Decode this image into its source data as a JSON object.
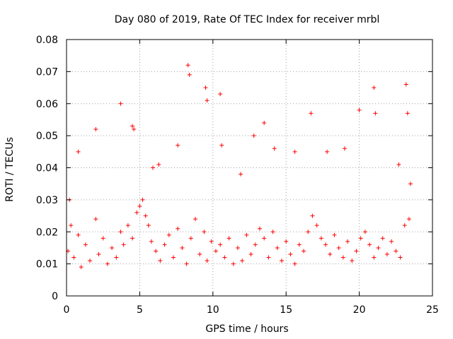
{
  "chart_data": {
    "type": "scatter",
    "title": "Day 080 of 2019, Rate Of TEC Index for receiver mrbl",
    "xlabel": "GPS time / hours",
    "ylabel": "ROTI / TECUs",
    "xlim": [
      0,
      25
    ],
    "ylim": [
      0,
      0.08
    ],
    "x_ticks": [
      "0",
      "5",
      "10",
      "15",
      "20",
      "25"
    ],
    "y_ticks": [
      "0",
      "0.01",
      "0.02",
      "0.03",
      "0.04",
      "0.05",
      "0.06",
      "0.07",
      "0.08"
    ],
    "grid": true,
    "marker": "plus",
    "color": "#ff0000",
    "series": [
      {
        "name": "ROTI",
        "x": [
          0.1,
          0.3,
          0.5,
          0.8,
          1.0,
          1.3,
          1.6,
          2.0,
          2.2,
          2.5,
          2.8,
          3.1,
          3.4,
          3.7,
          3.9,
          4.2,
          4.5,
          4.8,
          5.0,
          5.2,
          5.4,
          5.6,
          5.8,
          6.1,
          6.4,
          6.7,
          7.0,
          7.3,
          7.6,
          7.9,
          8.2,
          8.5,
          8.8,
          9.1,
          9.4,
          9.6,
          9.9,
          10.2,
          10.5,
          10.8,
          11.1,
          11.4,
          11.7,
          12.0,
          12.3,
          12.6,
          12.9,
          13.2,
          13.5,
          13.8,
          14.1,
          14.4,
          14.7,
          15.0,
          15.3,
          15.6,
          15.9,
          16.2,
          16.5,
          16.8,
          17.1,
          17.4,
          17.7,
          18.0,
          18.3,
          18.6,
          18.9,
          19.2,
          19.5,
          19.8,
          20.1,
          20.4,
          20.7,
          21.0,
          21.3,
          21.6,
          21.9,
          22.2,
          22.5,
          22.8,
          23.1,
          23.4,
          3.7,
          8.3,
          8.4,
          9.5,
          9.6,
          10.5,
          20.0,
          21.0,
          21.1,
          23.2,
          23.3,
          16.7,
          13.5,
          4.5,
          4.6,
          7.6,
          10.6,
          0.8,
          2.0,
          0.2,
          23.5,
          19.0,
          14.2,
          12.8,
          17.8,
          6.3,
          5.9,
          22.7,
          11.9,
          15.6
        ],
        "y": [
          0.014,
          0.022,
          0.012,
          0.019,
          0.009,
          0.016,
          0.011,
          0.024,
          0.013,
          0.018,
          0.01,
          0.015,
          0.012,
          0.02,
          0.016,
          0.022,
          0.018,
          0.026,
          0.028,
          0.03,
          0.025,
          0.022,
          0.017,
          0.014,
          0.011,
          0.016,
          0.019,
          0.012,
          0.021,
          0.015,
          0.01,
          0.018,
          0.024,
          0.013,
          0.02,
          0.011,
          0.017,
          0.014,
          0.016,
          0.012,
          0.018,
          0.01,
          0.015,
          0.011,
          0.019,
          0.013,
          0.016,
          0.021,
          0.018,
          0.012,
          0.02,
          0.015,
          0.011,
          0.017,
          0.013,
          0.01,
          0.016,
          0.014,
          0.02,
          0.025,
          0.022,
          0.018,
          0.016,
          0.013,
          0.019,
          0.015,
          0.012,
          0.017,
          0.011,
          0.014,
          0.018,
          0.02,
          0.016,
          0.012,
          0.015,
          0.018,
          0.013,
          0.017,
          0.014,
          0.012,
          0.022,
          0.024,
          0.06,
          0.072,
          0.069,
          0.065,
          0.061,
          0.063,
          0.058,
          0.065,
          0.057,
          0.066,
          0.057,
          0.057,
          0.054,
          0.053,
          0.052,
          0.047,
          0.047,
          0.045,
          0.052,
          0.03,
          0.035,
          0.046,
          0.046,
          0.05,
          0.045,
          0.041,
          0.04,
          0.041,
          0.038,
          0.045
        ]
      }
    ]
  }
}
